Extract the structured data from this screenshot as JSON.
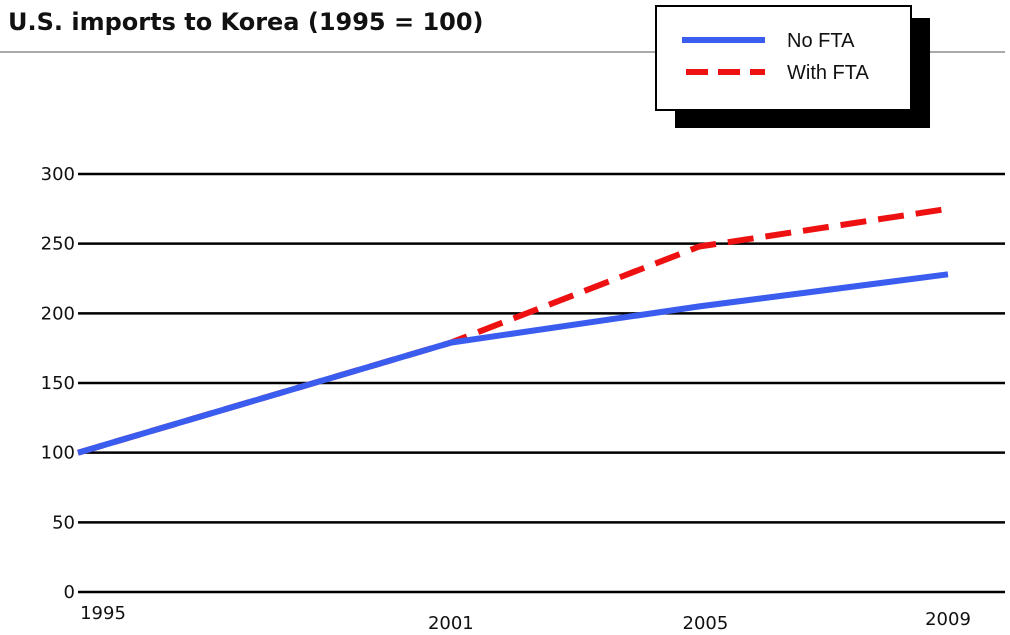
{
  "title": "U.S. imports to Korea (1995 = 100)",
  "chart_data": {
    "type": "line",
    "title": "U.S. imports to Korea (1995 = 100)",
    "xlabel": "",
    "ylabel": "",
    "categories": [
      "1995",
      "2001",
      "2005",
      "2009"
    ],
    "x": [
      1995,
      2001,
      2005,
      2009
    ],
    "ylim": [
      0,
      300
    ],
    "yticks": [
      0,
      50,
      100,
      150,
      200,
      250,
      300
    ],
    "grid": true,
    "legend_position": "top-right",
    "series": [
      {
        "name": "No FTA",
        "style": "solid",
        "color": "#3a5df0",
        "points": [
          [
            1995,
            100
          ],
          [
            2001,
            179
          ],
          [
            2005,
            205
          ],
          [
            2009,
            228
          ]
        ]
      },
      {
        "name": "With FTA",
        "style": "dashed",
        "color": "#ee1111",
        "points": [
          [
            1995,
            100
          ],
          [
            2001,
            179
          ],
          [
            2005,
            248
          ],
          [
            2009,
            275
          ]
        ]
      }
    ]
  }
}
